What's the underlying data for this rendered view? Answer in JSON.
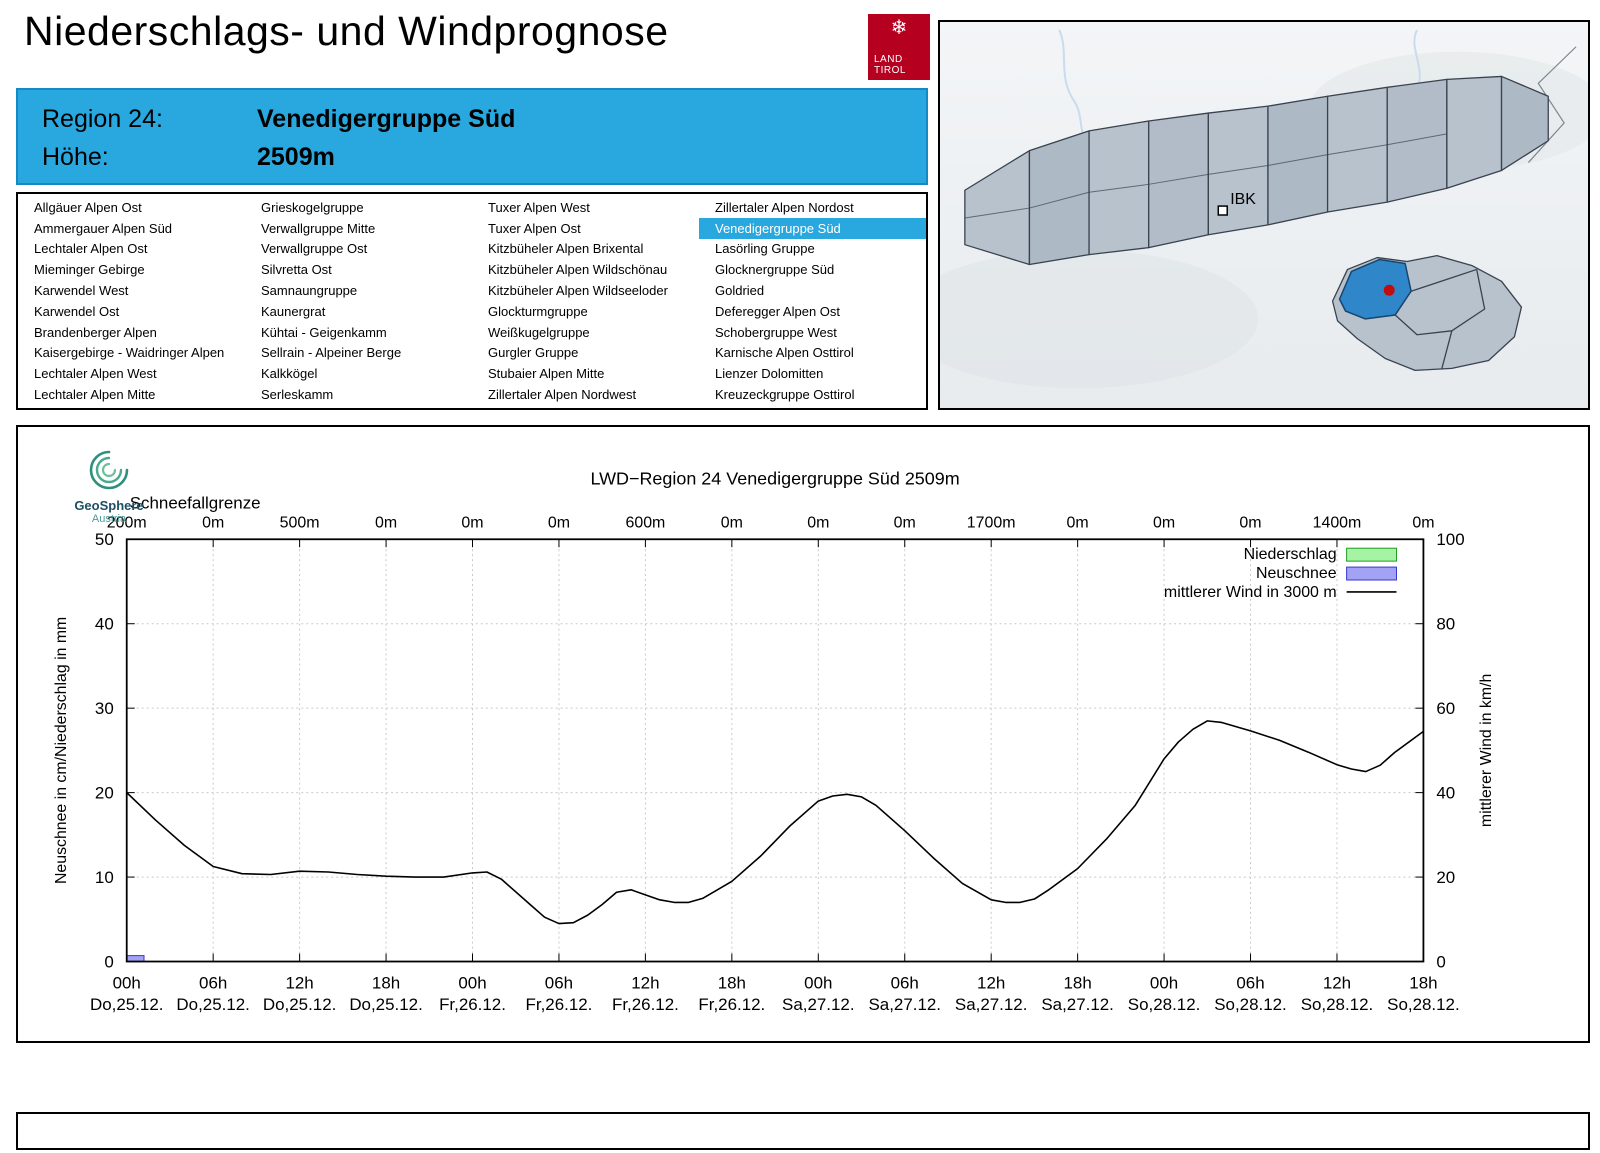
{
  "header": {
    "title": "Niederschlags- und Windprognose",
    "logo": {
      "snowflake_icon": "❄",
      "line1": "LAND",
      "line2": "TIROL"
    },
    "region_label": "Region 24:",
    "region_value": "Venedigergruppe Süd",
    "altitude_label": "Höhe:",
    "altitude_value": "2509m",
    "accent_color": "#29a8e0"
  },
  "region_list": {
    "selected": "Venedigergruppe Süd",
    "columns": [
      [
        "Allgäuer Alpen Ost",
        "Ammergauer Alpen Süd",
        "Lechtaler Alpen Ost",
        "Mieminger Gebirge",
        "Karwendel West",
        "Karwendel Ost",
        "Brandenberger Alpen",
        "Kaisergebirge - Waidringer Alpen",
        "Lechtaler Alpen West",
        "Lechtaler Alpen Mitte"
      ],
      [
        "Grieskogelgruppe",
        "Verwallgruppe Mitte",
        "Verwallgruppe Ost",
        "Silvretta Ost",
        "Samnaungruppe",
        "Kaunergrat",
        "Kühtai - Geigenkamm",
        "Sellrain - Alpeiner Berge",
        "Kalkkögel",
        "Serleskamm"
      ],
      [
        "Tuxer Alpen West",
        "Tuxer Alpen Ost",
        "Kitzbüheler Alpen Brixental",
        "Kitzbüheler Alpen Wildschönau",
        "Kitzbüheler Alpen Wildseeloder",
        "Glockturmgruppe",
        "Weißkugelgruppe",
        "Gurgler Gruppe",
        "Stubaier Alpen Mitte",
        "Zillertaler Alpen Nordwest"
      ],
      [
        "Zillertaler Alpen Nordost",
        "Venedigergruppe Süd",
        "Lasörling Gruppe",
        "Glocknergruppe Süd",
        "Goldried",
        "Deferegger Alpen Ost",
        "Schobergruppe West",
        "Karnische Alpen Osttirol",
        "Lienzer Dolomitten",
        "Kreuzeckgruppe Osttirol"
      ]
    ]
  },
  "map": {
    "marker_label": "IBK",
    "highlight_color": "#2f86c8",
    "marker_dot_color": "#c00d0d"
  },
  "geosphere": {
    "name": "GeoSphere",
    "sub": "Austria"
  },
  "chart_data": {
    "type": "line",
    "title": "LWD−Region 24 Venedigergruppe Süd 2509m",
    "x_range": [
      0,
      90
    ],
    "ylim_left": [
      0,
      50
    ],
    "ylim_right": [
      0,
      100
    ],
    "yticks_left": [
      0,
      10,
      20,
      30,
      40,
      50
    ],
    "yticks_right": [
      0,
      20,
      40,
      60,
      80,
      100
    ],
    "ylabel_left": "Neuschnee in cm/Niederschlag in mm",
    "ylabel_right": "mittlerer Wind in km/h",
    "grid": true,
    "legend_position": "top-right",
    "schneefallgrenze": {
      "label": "Schneefallgrenze",
      "values": [
        "200m",
        "0m",
        "500m",
        "0m",
        "0m",
        "0m",
        "600m",
        "0m",
        "0m",
        "0m",
        "1700m",
        "0m",
        "0m",
        "0m",
        "1400m",
        "0m"
      ]
    },
    "xticks": [
      {
        "hour": 0,
        "time": "00h",
        "date": "Do,25.12."
      },
      {
        "hour": 6,
        "time": "06h",
        "date": "Do,25.12."
      },
      {
        "hour": 12,
        "time": "12h",
        "date": "Do,25.12."
      },
      {
        "hour": 18,
        "time": "18h",
        "date": "Do,25.12."
      },
      {
        "hour": 24,
        "time": "00h",
        "date": "Fr,26.12."
      },
      {
        "hour": 30,
        "time": "06h",
        "date": "Fr,26.12."
      },
      {
        "hour": 36,
        "time": "12h",
        "date": "Fr,26.12."
      },
      {
        "hour": 42,
        "time": "18h",
        "date": "Fr,26.12."
      },
      {
        "hour": 48,
        "time": "00h",
        "date": "Sa,27.12."
      },
      {
        "hour": 54,
        "time": "06h",
        "date": "Sa,27.12."
      },
      {
        "hour": 60,
        "time": "12h",
        "date": "Sa,27.12."
      },
      {
        "hour": 66,
        "time": "18h",
        "date": "Sa,27.12."
      },
      {
        "hour": 72,
        "time": "00h",
        "date": "So,28.12."
      },
      {
        "hour": 78,
        "time": "06h",
        "date": "So,28.12."
      },
      {
        "hour": 84,
        "time": "12h",
        "date": "So,28.12."
      },
      {
        "hour": 90,
        "time": "18h",
        "date": "So,28.12."
      }
    ],
    "legend": [
      {
        "label": "Niederschlag",
        "type": "box",
        "color": "#a6f3a6",
        "border": "#1e9e1e"
      },
      {
        "label": "Neuschnee",
        "type": "box",
        "color": "#a3a3f5",
        "border": "#3535cf"
      },
      {
        "label": "mittlerer Wind in 3000 m",
        "type": "line",
        "color": "#000000"
      }
    ],
    "bars": [
      {
        "name": "Neuschnee",
        "axis": "left",
        "unit": "cm",
        "color": "#a3a3f5",
        "border": "#3535cf",
        "points": [
          {
            "hour": 0,
            "width_hours": 1.2,
            "value": 0.7
          }
        ]
      },
      {
        "name": "Niederschlag",
        "axis": "left",
        "unit": "mm",
        "color": "#a6f3a6",
        "border": "#1e9e1e",
        "points": []
      }
    ],
    "wind": {
      "name": "mittlerer Wind in 3000 m",
      "axis": "right",
      "unit": "km/h",
      "points": [
        [
          0,
          40
        ],
        [
          2,
          33.5
        ],
        [
          4,
          27.5
        ],
        [
          6,
          22.5
        ],
        [
          8,
          20.8
        ],
        [
          10,
          20.6
        ],
        [
          12,
          21.4
        ],
        [
          14,
          21.2
        ],
        [
          16,
          20.6
        ],
        [
          18,
          20.2
        ],
        [
          20,
          20
        ],
        [
          22,
          20
        ],
        [
          24,
          21
        ],
        [
          25,
          21.2
        ],
        [
          26,
          19.5
        ],
        [
          28,
          13.5
        ],
        [
          29,
          10.5
        ],
        [
          30,
          9
        ],
        [
          31,
          9.2
        ],
        [
          32,
          11
        ],
        [
          33,
          13.5
        ],
        [
          34,
          16.4
        ],
        [
          35,
          17
        ],
        [
          36,
          15.8
        ],
        [
          37,
          14.6
        ],
        [
          38,
          14
        ],
        [
          39,
          14
        ],
        [
          40,
          15
        ],
        [
          42,
          19
        ],
        [
          44,
          25
        ],
        [
          46,
          32
        ],
        [
          48,
          38
        ],
        [
          49,
          39.2
        ],
        [
          50,
          39.6
        ],
        [
          51,
          39
        ],
        [
          52,
          37
        ],
        [
          54,
          31
        ],
        [
          56,
          24.5
        ],
        [
          58,
          18.5
        ],
        [
          60,
          14.6
        ],
        [
          61,
          14
        ],
        [
          62,
          14
        ],
        [
          63,
          14.8
        ],
        [
          64,
          17
        ],
        [
          66,
          22
        ],
        [
          68,
          29
        ],
        [
          70,
          37
        ],
        [
          72,
          48
        ],
        [
          73,
          52
        ],
        [
          74,
          55
        ],
        [
          75,
          57
        ],
        [
          76,
          56.6
        ],
        [
          78,
          54.6
        ],
        [
          80,
          52.4
        ],
        [
          82,
          49.6
        ],
        [
          84,
          46.6
        ],
        [
          85,
          45.6
        ],
        [
          86,
          45
        ],
        [
          87,
          46.5
        ],
        [
          88,
          49.5
        ],
        [
          90,
          54.5
        ]
      ]
    }
  }
}
